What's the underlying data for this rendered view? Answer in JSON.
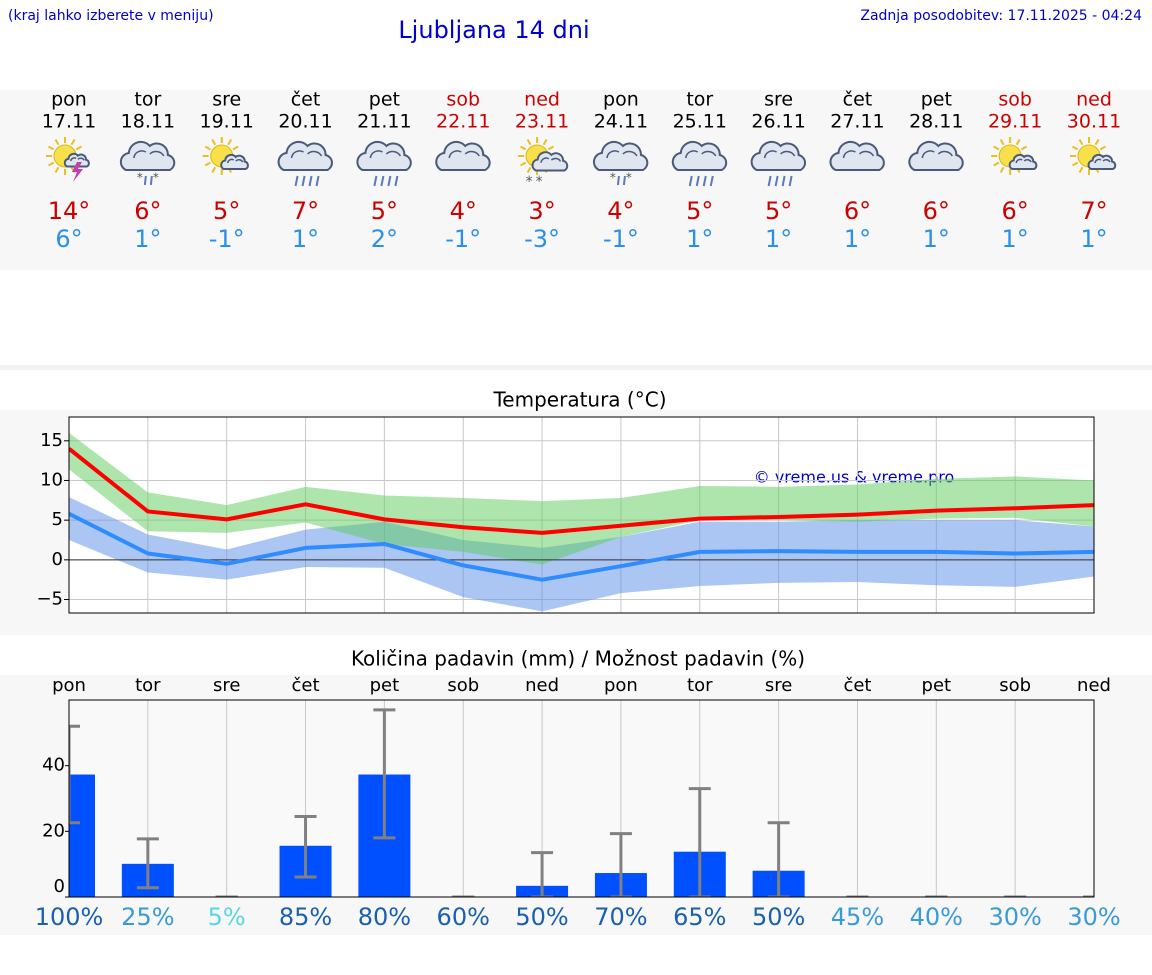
{
  "header": {
    "note": "(kraj lahko izberete v meniju)",
    "title": "Ljubljana 14 dni",
    "updated": "Zadnja posodobitev: 17.11.2025 - 04:24"
  },
  "forecast": [
    {
      "day": "pon",
      "date": "17.11",
      "high": "14°",
      "low": "6°",
      "color": "#000000"
    },
    {
      "day": "tor",
      "date": "18.11",
      "high": "6°",
      "low": "1°",
      "color": "#000000"
    },
    {
      "day": "sre",
      "date": "19.11",
      "high": "5°",
      "low": "-1°",
      "color": "#000000"
    },
    {
      "day": "čet",
      "date": "20.11",
      "high": "7°",
      "low": "1°",
      "color": "#000000"
    },
    {
      "day": "pet",
      "date": "21.11",
      "high": "5°",
      "low": "2°",
      "color": "#000000"
    },
    {
      "day": "sob",
      "date": "22.11",
      "high": "4°",
      "low": "-1°",
      "color": "#cc0000"
    },
    {
      "day": "ned",
      "date": "23.11",
      "high": "3°",
      "low": "-3°",
      "color": "#cc0000"
    },
    {
      "day": "pon",
      "date": "24.11",
      "high": "4°",
      "low": "-1°",
      "color": "#000000"
    },
    {
      "day": "tor",
      "date": "25.11",
      "high": "5°",
      "low": "1°",
      "color": "#000000"
    },
    {
      "day": "sre",
      "date": "26.11",
      "high": "5°",
      "low": "1°",
      "color": "#000000"
    },
    {
      "day": "čet",
      "date": "27.11",
      "high": "6°",
      "low": "1°",
      "color": "#000000"
    },
    {
      "day": "pet",
      "date": "28.11",
      "high": "6°",
      "low": "1°",
      "color": "#000000"
    },
    {
      "day": "sob",
      "date": "29.11",
      "high": "6°",
      "low": "1°",
      "color": "#cc0000"
    },
    {
      "day": "ned",
      "date": "30.11",
      "high": "7°",
      "low": "1°",
      "color": "#cc0000"
    }
  ],
  "high_color": "#cc0000",
  "chart_data": [
    {
      "type": "line",
      "title": "Temperatura (°C)",
      "annotation": "© vreme.us & vreme.pro",
      "categories": [
        null,
        null,
        null,
        null,
        null,
        null,
        null,
        null,
        null,
        null,
        null,
        null,
        null,
        null
      ],
      "bands": [
        {
          "color": "#5a8ee8",
          "high": [
            7.9,
            3.2,
            1.3,
            3.8,
            4.8,
            2.5,
            1.5,
            2.9,
            4.8,
            4.8,
            5.0,
            5.0,
            5.0,
            4.2
          ],
          "low": [
            2.5,
            -1.6,
            -2.5,
            -0.9,
            -1.0,
            -4.7,
            -6.5,
            -4.2,
            -3.3,
            -2.9,
            -2.8,
            -3.2,
            -3.4,
            -2.1
          ]
        },
        {
          "color": "#5ccc5c",
          "high": [
            16.0,
            8.5,
            6.9,
            9.2,
            8.1,
            7.8,
            7.4,
            7.8,
            9.3,
            9.2,
            9.5,
            10.2,
            10.5,
            10.0
          ],
          "low": [
            11.4,
            3.6,
            3.4,
            4.7,
            2.0,
            1.0,
            -0.6,
            2.9,
            5.0,
            5.0,
            4.8,
            5.2,
            5.3,
            4.2
          ]
        }
      ],
      "series": [
        {
          "color": "#ff0000",
          "values": [
            14.0,
            6.1,
            5.1,
            7.0,
            5.1,
            4.1,
            3.4,
            4.3,
            5.2,
            5.4,
            5.7,
            6.2,
            6.5,
            6.9
          ]
        },
        {
          "color": "#2f8cff",
          "values": [
            5.8,
            0.8,
            -0.5,
            1.5,
            2.0,
            -0.7,
            -2.5,
            -0.8,
            1.0,
            1.1,
            1.0,
            1.0,
            0.8,
            1.0
          ]
        }
      ],
      "ylim": [
        -6.7,
        18
      ],
      "yticks": [
        {
          "value": -5,
          "label": "−5"
        },
        0,
        5,
        10,
        15
      ],
      "grid": true
    },
    {
      "type": "bar",
      "title": "Količina padavin (mm) / Možnost padavin (%)",
      "categories": [
        "pon",
        "tor",
        "sre",
        "čet",
        "pet",
        "sob",
        "ned",
        "pon",
        "tor",
        "sre",
        "čet",
        "pet",
        "sob",
        "ned"
      ],
      "values": [
        37.3,
        10.1,
        0,
        15.6,
        37.3,
        0,
        3.4,
        7.3,
        13.8,
        8.0,
        0,
        0,
        0,
        0
      ],
      "error_low": [
        22.6,
        2.8,
        0,
        6.1,
        18.0,
        0,
        0,
        0,
        0,
        0,
        0,
        0,
        0,
        0
      ],
      "error_high": [
        52.0,
        17.7,
        0,
        24.5,
        57.0,
        0,
        13.5,
        19.3,
        33.0,
        22.6,
        0,
        0,
        0,
        0
      ],
      "color": "#0050ff",
      "error_color": "#808080",
      "probability": [
        "100%",
        "25%",
        "5%",
        "85%",
        "80%",
        "60%",
        "50%",
        "70%",
        "65%",
        "50%",
        "45%",
        "40%",
        "30%",
        "30%"
      ],
      "probability_colors": [
        "#1a5fb0",
        "#3a9ad9",
        "#5bd5e5",
        "#1a5fb0",
        "#1a5fb0",
        "#1a5fb0",
        "#1a5fb0",
        "#1a5fb0",
        "#1a5fb0",
        "#1a5fb0",
        "#3a9ad9",
        "#3a9ad9",
        "#3a9ad9",
        "#3a9ad9"
      ],
      "ylim": [
        0,
        60
      ],
      "yticks": [
        0,
        20,
        40
      ],
      "grid": true
    }
  ]
}
